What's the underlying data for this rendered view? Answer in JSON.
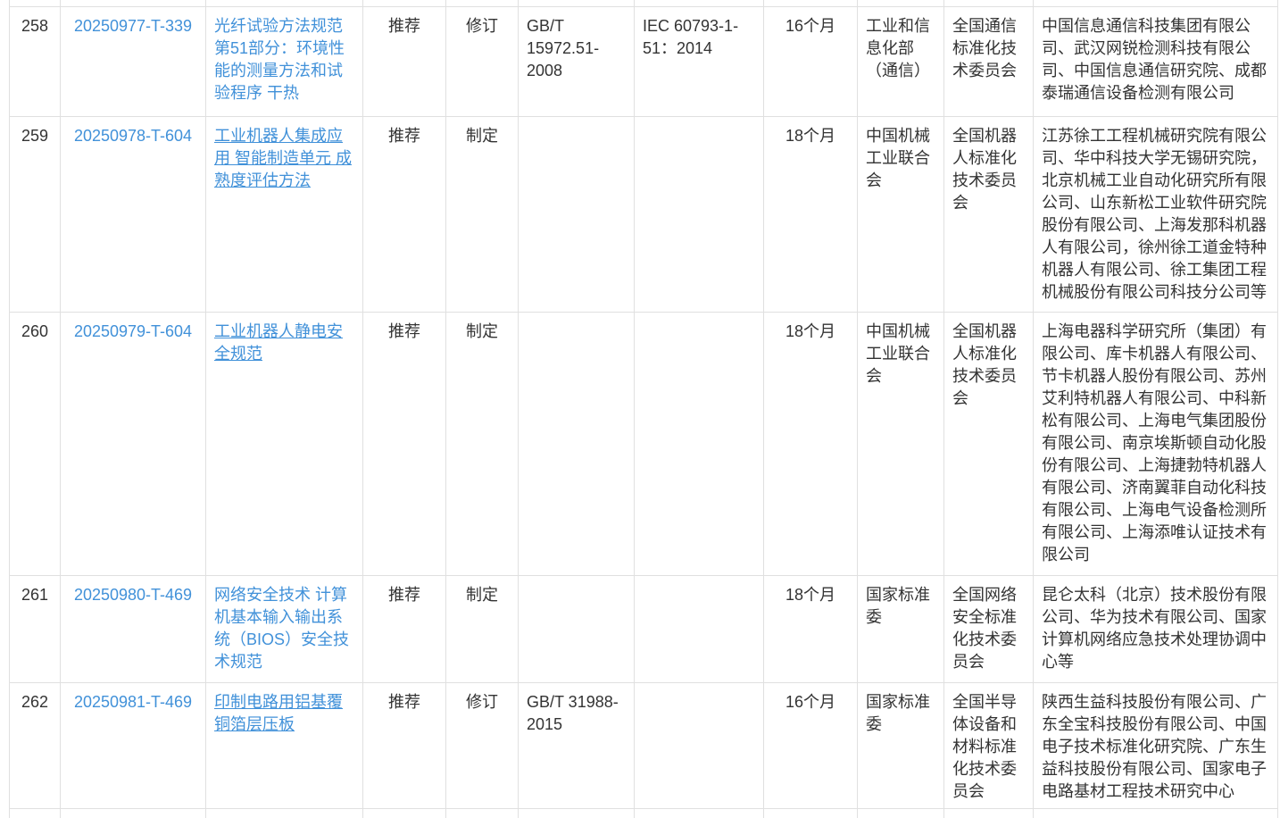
{
  "colors": {
    "link": "#4191d9",
    "text": "#333333",
    "border": "#e0e0e0",
    "background": "#ffffff"
  },
  "table": {
    "rows": [
      {
        "seq": "258",
        "plan_id": "20250977-T-339",
        "name": "光纤试验方法规范 第51部分：环境性能的测量方法和试验程序 干热",
        "name_underlined": false,
        "level": "推荐",
        "type": "修订",
        "replaced_standard": "GB/T 15972.51-2008",
        "international_standard": "IEC 60793-1-51：2014",
        "duration": "16个月",
        "department": "工业和信息化部（通信）",
        "committee": "全国通信标准化技术委员会",
        "organizations": "中国信息通信科技集团有限公司、武汉网锐检测科技有限公司、中国信息通信研究院、成都泰瑞通信设备检测有限公司"
      },
      {
        "seq": "259",
        "plan_id": "20250978-T-604",
        "name": "工业机器人集成应用 智能制造单元 成熟度评估方法",
        "name_underlined": true,
        "level": "推荐",
        "type": "制定",
        "replaced_standard": "",
        "international_standard": "",
        "duration": "18个月",
        "department": "中国机械工业联合会",
        "committee": "全国机器人标准化技术委员会",
        "organizations": "江苏徐工工程机械研究院有限公司、华中科技大学无锡研究院，北京机械工业自动化研究所有限公司、山东新松工业软件研究院股份有限公司、上海发那科机器人有限公司，徐州徐工道金特种机器人有限公司、徐工集团工程机械股份有限公司科技分公司等"
      },
      {
        "seq": "260",
        "plan_id": "20250979-T-604",
        "name": "工业机器人静电安全规范",
        "name_underlined": true,
        "level": "推荐",
        "type": "制定",
        "replaced_standard": "",
        "international_standard": "",
        "duration": "18个月",
        "department": "中国机械工业联合会",
        "committee": "全国机器人标准化技术委员会",
        "organizations": "上海电器科学研究所（集团）有限公司、库卡机器人有限公司、节卡机器人股份有限公司、苏州艾利特机器人有限公司、中科新松有限公司、上海电气集团股份有限公司、南京埃斯顿自动化股份有限公司、上海捷勃特机器人有限公司、济南翼菲自动化科技有限公司、上海电气设备检测所有限公司、上海添唯认证技术有限公司"
      },
      {
        "seq": "261",
        "plan_id": "20250980-T-469",
        "name": "网络安全技术 计算机基本输入输出系统（BIOS）安全技术规范",
        "name_underlined": false,
        "level": "推荐",
        "type": "制定",
        "replaced_standard": "",
        "international_standard": "",
        "duration": "18个月",
        "department": "国家标准委",
        "committee": "全国网络安全标准化技术委员会",
        "organizations": "昆仑太科（北京）技术股份有限公司、华为技术有限公司、国家计算机网络应急技术处理协调中心等"
      },
      {
        "seq": "262",
        "plan_id": "20250981-T-469",
        "name": "印制电路用铝基覆铜箔层压板",
        "name_underlined": true,
        "level": "推荐",
        "type": "修订",
        "replaced_standard": "GB/T 31988-2015",
        "international_standard": "",
        "duration": "16个月",
        "department": "国家标准委",
        "committee": "全国半导体设备和材料标准化技术委员会",
        "organizations": "陕西生益科技股份有限公司、广东全宝科技股份有限公司、中国电子技术标准化研究院、广东生益科技股份有限公司、国家电子电路基材工程技术研究中心"
      }
    ]
  }
}
